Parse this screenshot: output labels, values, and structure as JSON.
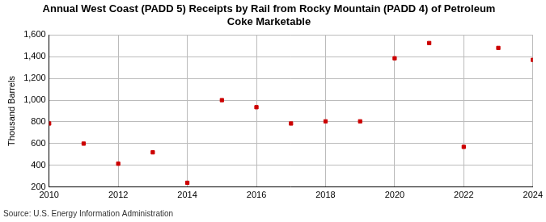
{
  "chart_data": {
    "type": "scatter",
    "title": [
      "Annual West Coast (PADD 5) Receipts by Rail from Rocky Mountain (PADD 4) of Petroleum",
      "Coke Marketable"
    ],
    "y_label": "Thousand Barrels",
    "source": "Source: U.S. Energy Information Administration",
    "x": [
      2010,
      2011,
      2012,
      2013,
      2014,
      2015,
      2016,
      2017,
      2018,
      2019,
      2020,
      2021,
      2022,
      2023,
      2024
    ],
    "values": [
      785,
      600,
      415,
      520,
      240,
      1000,
      935,
      785,
      805,
      805,
      1385,
      1525,
      570,
      1480,
      1370
    ],
    "color": "#cc0000",
    "marker": "square",
    "xlim": [
      2010,
      2024
    ],
    "xticks": [
      2010,
      2012,
      2014,
      2016,
      2018,
      2020,
      2022,
      2024
    ],
    "ylim": [
      200,
      1600
    ],
    "yticks": [
      200,
      400,
      600,
      800,
      {
        "value": 1000,
        "label": "1,000"
      },
      {
        "value": 1200,
        "label": "1,200"
      },
      {
        "value": 1400,
        "label": "1,400"
      },
      {
        "value": 1600,
        "label": "1,600"
      }
    ],
    "grid": true
  }
}
